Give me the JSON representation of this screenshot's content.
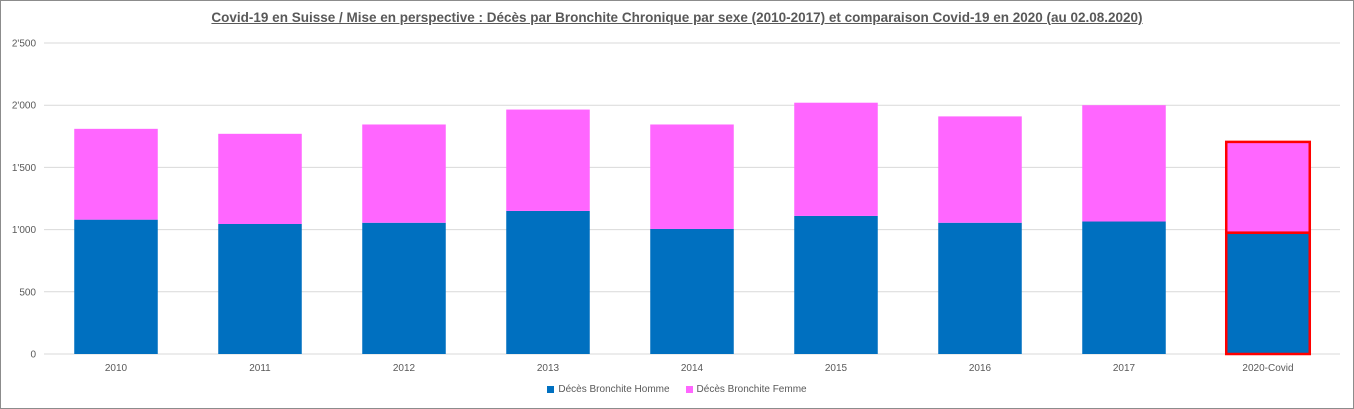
{
  "chart_data": {
    "type": "bar",
    "stacked": true,
    "title": "Covid-19 en Suisse / Mise en perspective : Décès par Bronchite Chronique par sexe (2010-2017)  et comparaison  Covid-19 en 2020 (au 02.08.2020)",
    "categories": [
      "2010",
      "2011",
      "2012",
      "2013",
      "2014",
      "2015",
      "2016",
      "2017",
      "2020-Covid"
    ],
    "series": [
      {
        "name": "Décès Bronchite Homme",
        "color": "#0070C0",
        "values": [
          1080,
          1045,
          1055,
          1150,
          1005,
          1110,
          1055,
          1065,
          975
        ]
      },
      {
        "name": "Décès Bronchite Femme",
        "color": "#FF66FF",
        "values": [
          730,
          725,
          790,
          815,
          840,
          910,
          855,
          935,
          730
        ]
      }
    ],
    "ylim": [
      0,
      2500
    ],
    "yticks": [
      0,
      500,
      1000,
      1500,
      2000,
      2500
    ],
    "ytick_labels": [
      "0",
      "500",
      "1'000",
      "1'500",
      "2'000",
      "2'500"
    ],
    "grid": true,
    "legend_position": "bottom",
    "highlight": {
      "category": "2020-Covid",
      "outline_color": "#FF0000"
    }
  }
}
